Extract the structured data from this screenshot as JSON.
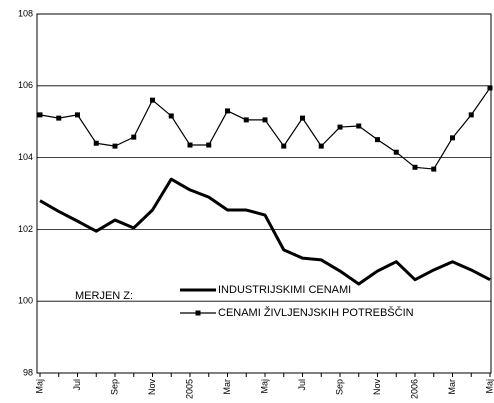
{
  "chart_data": {
    "type": "line",
    "legend_title": "MERJEN Z:",
    "categories": [
      "Maj",
      null,
      "Jul",
      null,
      "Sep",
      null,
      "Nov",
      null,
      "2005",
      null,
      "Mar",
      null,
      "Maj",
      null,
      "Jul",
      null,
      "Sep",
      null,
      "Nov",
      null,
      "2006",
      null,
      "Mar",
      null,
      "Maj"
    ],
    "series": [
      {
        "name": "INDUSTRIJSKIMI CENAMI",
        "color": "#000000",
        "marker": "none",
        "values": [
          102.8,
          102.5,
          102.23,
          101.95,
          102.26,
          102.04,
          102.54,
          103.4,
          103.1,
          102.9,
          102.54,
          102.54,
          102.4,
          101.43,
          101.2,
          101.15,
          100.84,
          100.48,
          100.84,
          101.1,
          100.6,
          100.87,
          101.1,
          100.87,
          100.6
        ]
      },
      {
        "name": "CENAMI ŽIVLJENJSKIH POTREBŠČIN",
        "color": "#000000",
        "marker": "square",
        "values": [
          105.19,
          105.1,
          105.19,
          104.4,
          104.32,
          104.57,
          105.6,
          105.16,
          104.35,
          104.35,
          105.3,
          105.05,
          105.05,
          104.32,
          105.1,
          104.32,
          104.85,
          104.88,
          104.5,
          104.15,
          103.73,
          103.68,
          104.55,
          105.19,
          105.94
        ]
      }
    ],
    "ylim": [
      98,
      108
    ],
    "yticks": [
      98,
      100,
      102,
      104,
      106,
      108
    ],
    "grid": true
  }
}
